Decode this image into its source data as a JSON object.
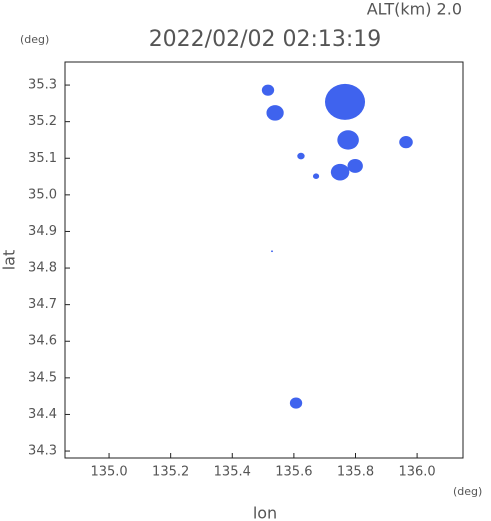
{
  "chart_data": {
    "type": "scatter",
    "title": "2022/02/02 02:13:19",
    "subtitle": "ALT(km) 2.0",
    "x_label": "lon",
    "y_label": "lat",
    "x_unit": "(deg)",
    "y_unit": "(deg)",
    "xlim": [
      134.857,
      136.149
    ],
    "ylim": [
      34.281,
      35.363
    ],
    "xticks": [
      {
        "value": 135.0,
        "label": "135.0"
      },
      135.2,
      135.4,
      135.6,
      135.8,
      {
        "value": 136.0,
        "label": "136.0"
      }
    ],
    "yticks": [
      34.3,
      34.4,
      34.5,
      34.6,
      34.7,
      34.8,
      34.9,
      {
        "value": 35.0,
        "label": "35.0"
      },
      35.1,
      35.2,
      35.3
    ],
    "series": [
      {
        "color": "#3f63ee",
        "x": [
          135.766,
          135.516,
          135.539,
          135.776,
          135.964,
          135.623,
          135.75,
          135.799,
          135.672,
          135.607,
          135.529
        ],
        "values": [
          35.254,
          35.286,
          35.224,
          35.15,
          35.144,
          35.106,
          35.062,
          35.079,
          35.051,
          34.431,
          34.846
        ],
        "sizes": [
          0.065,
          0.02,
          0.028,
          0.035,
          0.022,
          0.012,
          0.03,
          0.025,
          0.01,
          0.02,
          0.003
        ]
      }
    ]
  }
}
